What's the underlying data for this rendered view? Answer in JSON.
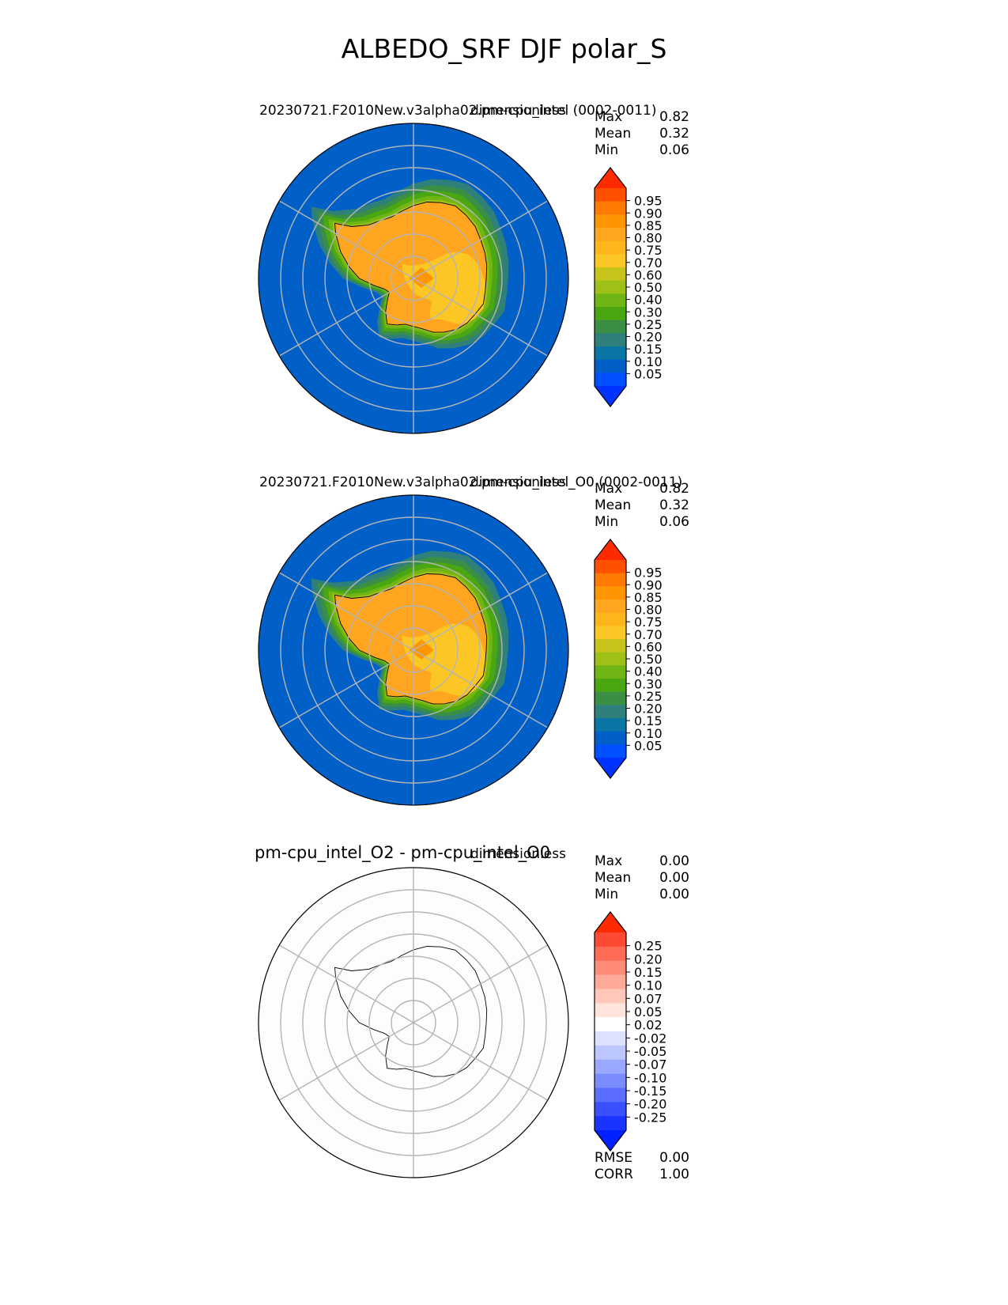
{
  "figure": {
    "title": "ALBEDO_SRF DJF polar_S"
  },
  "panels": [
    {
      "title": "20230721.F2010New.v3alpha02.pm-cpu_intel (0002-0011)",
      "units": "dimensionless",
      "stats": [
        {
          "label": "Max",
          "value": "0.82"
        },
        {
          "label": "Mean",
          "value": "0.32"
        },
        {
          "label": "Min",
          "value": "0.06"
        }
      ]
    },
    {
      "title": "20230721.F2010New.v3alpha02.pm-cpu_intel_O0 (0002-0011)",
      "units": "dimensionless",
      "stats": [
        {
          "label": "Max",
          "value": "0.82"
        },
        {
          "label": "Mean",
          "value": "0.32"
        },
        {
          "label": "Min",
          "value": "0.06"
        }
      ]
    },
    {
      "title": "pm-cpu_intel_O2 - pm-cpu_intel_O0",
      "units": "dimensionless",
      "stats": [
        {
          "label": "Max",
          "value": "0.00"
        },
        {
          "label": "Mean",
          "value": "0.00"
        },
        {
          "label": "Min",
          "value": "0.00"
        }
      ],
      "extra_stats": [
        {
          "label": "RMSE",
          "value": "0.00"
        },
        {
          "label": "CORR",
          "value": "1.00"
        }
      ]
    }
  ],
  "colorbars": {
    "model": {
      "ticks": [
        "0.95",
        "0.90",
        "0.85",
        "0.80",
        "0.75",
        "0.70",
        "0.60",
        "0.50",
        "0.40",
        "0.30",
        "0.25",
        "0.20",
        "0.15",
        "0.10",
        "0.05"
      ],
      "colors": [
        "#ff2a00",
        "#ff5000",
        "#ff7a00",
        "#ff9500",
        "#ffa51f",
        "#ffb51c",
        "#fcc624",
        "#c6c41a",
        "#9fc017",
        "#6fb513",
        "#4aa711",
        "#3a8f45",
        "#2f7f7a",
        "#0a76a5",
        "#0060c8",
        "#0050ff",
        "#0033ff"
      ]
    },
    "diff": {
      "ticks": [
        "0.25",
        "0.20",
        "0.15",
        "0.10",
        "0.07",
        "0.05",
        "0.02",
        "-0.02",
        "-0.05",
        "-0.07",
        "-0.10",
        "-0.15",
        "-0.20",
        "-0.25"
      ],
      "colors": [
        "#ff2a00",
        "#ff4a33",
        "#ff6b55",
        "#ff8c77",
        "#ffaa99",
        "#ffc8bb",
        "#ffe4dc",
        "#ffffff",
        "#dde3ff",
        "#bcc6ff",
        "#9aa8ff",
        "#7b8cff",
        "#5a6eff",
        "#3a50ff",
        "#1a33ff",
        "#0020ff"
      ]
    }
  },
  "chart_data": [
    {
      "type": "heatmap",
      "title": "20230721.F2010New.v3alpha02.pm-cpu_intel (0002-0011)",
      "units": "dimensionless",
      "projection": "south polar stereographic",
      "levels": [
        0.05,
        0.1,
        0.15,
        0.2,
        0.25,
        0.3,
        0.4,
        0.5,
        0.6,
        0.7,
        0.75,
        0.8,
        0.85,
        0.9,
        0.95
      ],
      "max": 0.82,
      "mean": 0.32,
      "min": 0.06
    },
    {
      "type": "heatmap",
      "title": "20230721.F2010New.v3alpha02.pm-cpu_intel_O0 (0002-0011)",
      "units": "dimensionless",
      "projection": "south polar stereographic",
      "levels": [
        0.05,
        0.1,
        0.15,
        0.2,
        0.25,
        0.3,
        0.4,
        0.5,
        0.6,
        0.7,
        0.75,
        0.8,
        0.85,
        0.9,
        0.95
      ],
      "max": 0.82,
      "mean": 0.32,
      "min": 0.06
    },
    {
      "type": "heatmap",
      "title": "pm-cpu_intel_O2 - pm-cpu_intel_O0",
      "units": "dimensionless",
      "projection": "south polar stereographic",
      "levels": [
        -0.25,
        -0.2,
        -0.15,
        -0.1,
        -0.07,
        -0.05,
        -0.02,
        0.02,
        0.05,
        0.07,
        0.1,
        0.15,
        0.2,
        0.25
      ],
      "max": 0.0,
      "mean": 0.0,
      "min": 0.0,
      "rmse": 0.0,
      "corr": 1.0
    }
  ]
}
